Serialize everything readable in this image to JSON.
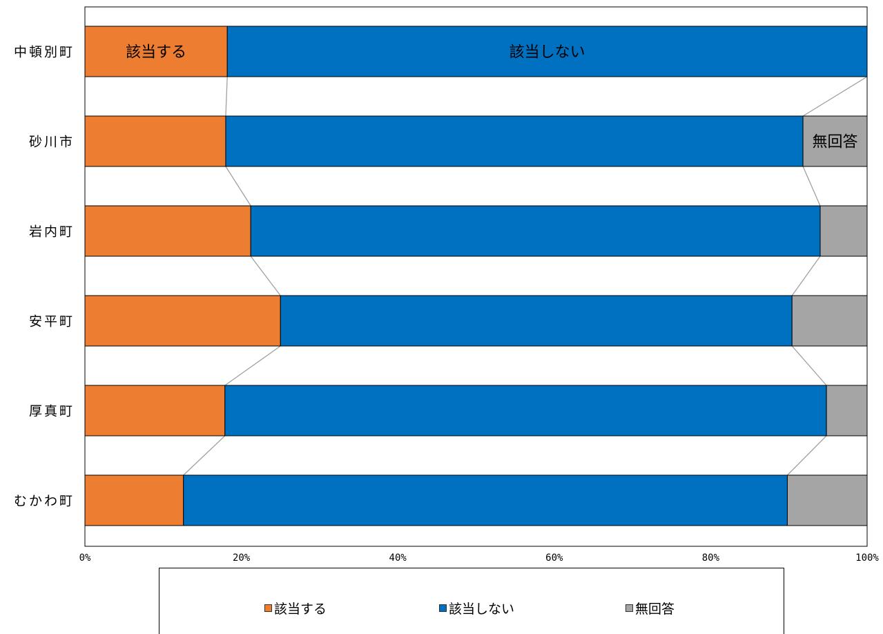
{
  "chart_data": {
    "type": "bar",
    "orientation": "horizontal",
    "stacked": "100%",
    "categories": [
      "中頓別町",
      "砂川市",
      "岩内町",
      "安平町",
      "厚真町",
      "むかわ町"
    ],
    "series": [
      {
        "name": "該当する",
        "color": "#ED7D31",
        "values": [
          18.2,
          18.0,
          21.2,
          25.0,
          17.9,
          12.6
        ]
      },
      {
        "name": "該当しない",
        "color": "#0070C0",
        "values": [
          81.8,
          73.8,
          72.8,
          65.4,
          76.9,
          77.2
        ]
      },
      {
        "name": "無回答",
        "color": "#A5A5A5",
        "values": [
          0.0,
          8.2,
          6.0,
          9.6,
          5.2,
          10.2
        ]
      }
    ],
    "xlim": [
      0,
      100
    ],
    "x_ticks": [
      "0%",
      "20%",
      "40%",
      "60%",
      "80%",
      "100%"
    ],
    "segment_labels": [
      {
        "category": "中頓別町",
        "series": "該当する",
        "text": "該当する"
      },
      {
        "category": "中頓別町",
        "series": "該当しない",
        "text": "該当しない"
      },
      {
        "category": "砂川市",
        "series": "無回答",
        "text": "無回答"
      }
    ],
    "series_lines": true,
    "legend_position": "bottom"
  },
  "legend": {
    "items": [
      {
        "label": "該当する",
        "color": "#ED7D31"
      },
      {
        "label": "該当しない",
        "color": "#0070C0"
      },
      {
        "label": "無回答",
        "color": "#A5A5A5"
      }
    ]
  }
}
